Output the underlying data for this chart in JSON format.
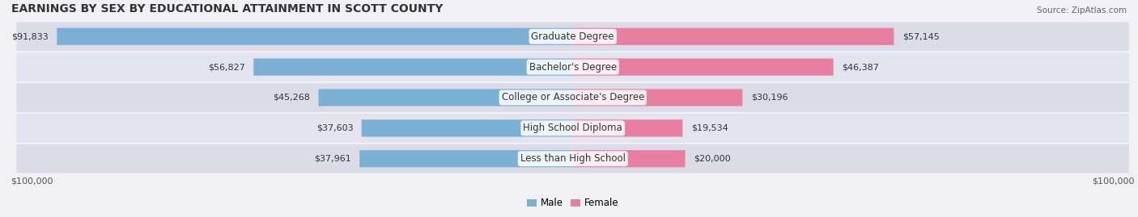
{
  "title": "EARNINGS BY SEX BY EDUCATIONAL ATTAINMENT IN SCOTT COUNTY",
  "source": "Source: ZipAtlas.com",
  "categories": [
    "Less than High School",
    "High School Diploma",
    "College or Associate's Degree",
    "Bachelor's Degree",
    "Graduate Degree"
  ],
  "male_values": [
    37961,
    37603,
    45268,
    56827,
    91833
  ],
  "female_values": [
    20000,
    19534,
    30196,
    46387,
    57145
  ],
  "male_color": "#7bafd4",
  "female_color": "#e87fa0",
  "male_label": "Male",
  "female_label": "Female",
  "max_value": 100000,
  "x_tick_label_left": "$100,000",
  "x_tick_label_right": "$100,000",
  "bg_color": "#f0f0f5",
  "title_fontsize": 10,
  "bar_height": 0.55,
  "label_fontsize": 8.5,
  "value_fontsize": 8.0
}
